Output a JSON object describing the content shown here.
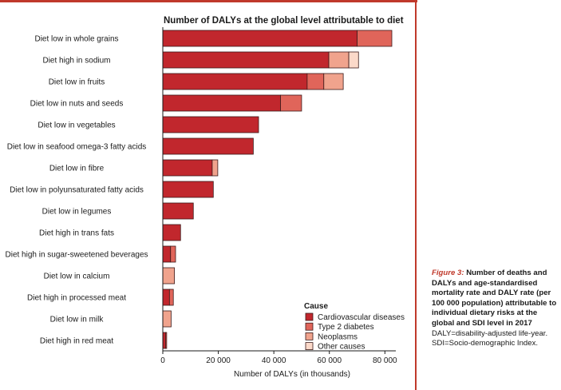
{
  "chart_data": {
    "type": "bar",
    "orientation": "horizontal",
    "stacked": true,
    "title": "Number of DALYs at the global level attributable to diet",
    "xlabel": "Number of DALYs (in thousands)",
    "ylabel": "",
    "xlim": [
      0,
      84000
    ],
    "xticks": [
      0,
      20000,
      40000,
      60000,
      80000
    ],
    "xtick_labels": [
      "0",
      "20 000",
      "40 000",
      "60 000",
      "80 000"
    ],
    "grid": false,
    "legend_title": "Cause",
    "legend_position": "bottom-right",
    "categories": [
      "Diet low in whole grains",
      "Diet high in sodium",
      "Diet low in fruits",
      "Diet low in nuts and seeds",
      "Diet low in vegetables",
      "Diet low in seafood omega-3 fatty acids",
      "Diet low in fibre",
      "Diet low in polyunsaturated fatty acids",
      "Diet low in legumes",
      "Diet high in trans fats",
      "Diet high in sugar-sweetened beverages",
      "Diet low in calcium",
      "Diet high in processed meat",
      "Diet low in milk",
      "Diet high in red meat"
    ],
    "series": [
      {
        "name": "Cardiovascular diseases",
        "color": "#c1272d",
        "values": [
          70000,
          59800,
          52000,
          42400,
          34500,
          32600,
          17800,
          18200,
          11000,
          6400,
          2800,
          0,
          2400,
          0,
          1000
        ]
      },
      {
        "name": "Type 2 diabetes",
        "color": "#e0655a",
        "values": [
          12500,
          0,
          6000,
          7600,
          0,
          0,
          0,
          0,
          0,
          0,
          1800,
          0,
          1400,
          0,
          400
        ]
      },
      {
        "name": "Neoplasms",
        "color": "#f0a38d",
        "values": [
          0,
          7200,
          7000,
          0,
          0,
          0,
          2000,
          0,
          0,
          0,
          0,
          4200,
          0,
          3000,
          0
        ]
      },
      {
        "name": "Other causes",
        "color": "#fbd9c9",
        "values": [
          0,
          3500,
          0,
          0,
          0,
          0,
          0,
          0,
          0,
          0,
          0,
          0,
          0,
          0,
          0
        ]
      }
    ]
  },
  "caption": {
    "figure_label": "Figure 3:",
    "heading": "Number of deaths and DALYs and age-standardised mortality rate and DALY rate (per 100 000 population) attributable to individual dietary risks at the global and SDI level in 2017",
    "note": "DALY=disability-adjusted life-year. SDI=Socio-demographic Index."
  }
}
